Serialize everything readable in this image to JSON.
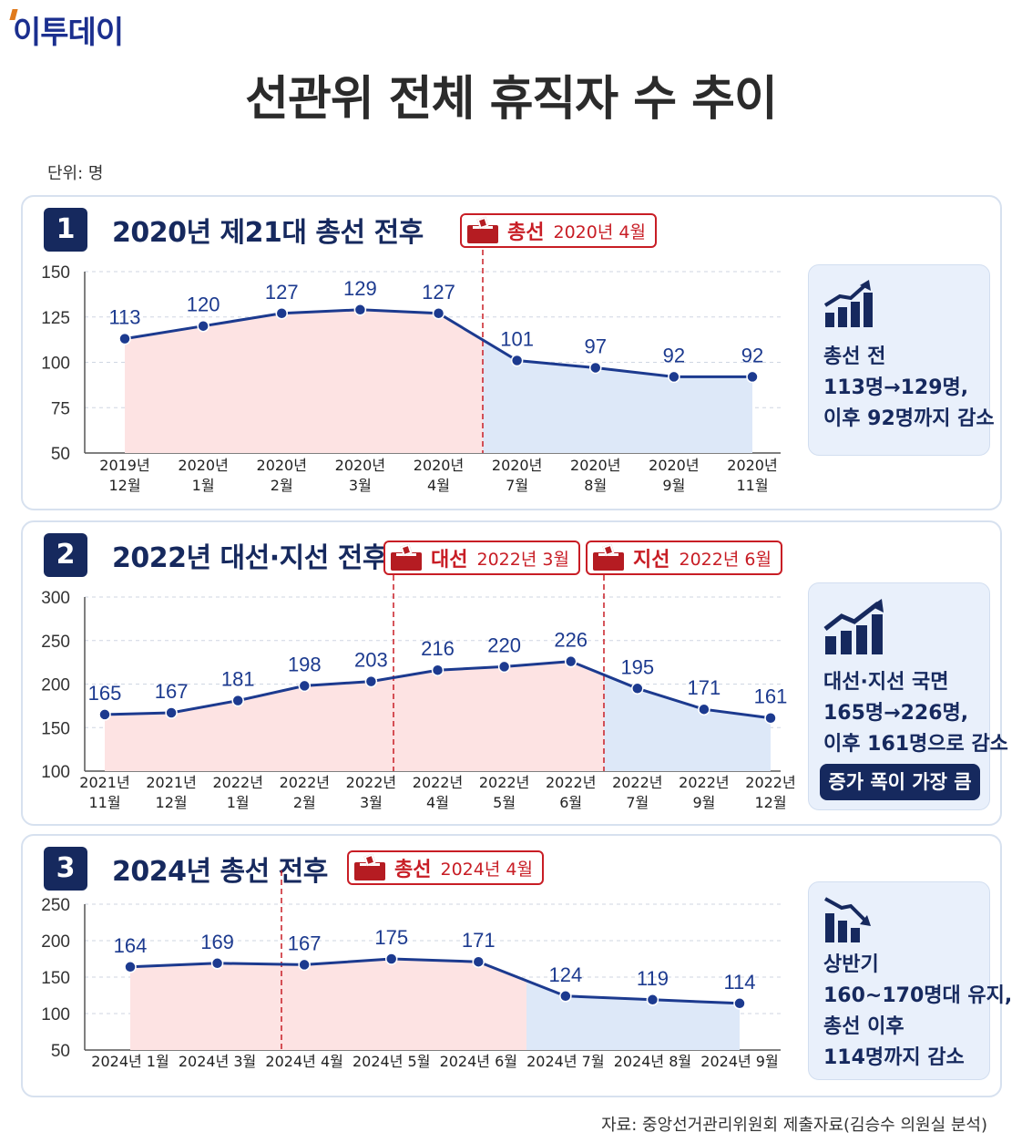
{
  "header": {
    "logo": "이투데이",
    "title": "선관위 전체 휴직자 수 추이",
    "unit": "단위: 명"
  },
  "source": "자료: 중앙선거관리위원회 제출자료(김승수 의원실 분석)",
  "colors": {
    "navy": "#16295e",
    "line": "#1c3a8f",
    "red": "#c81d25",
    "pre_fill": "#fde3e3",
    "post_fill": "#dde8f8"
  },
  "panels": [
    {
      "number": "1",
      "title": "2020년 제21대 총선 전후",
      "events": [
        {
          "name": "총선",
          "date": "2020년 4월"
        }
      ],
      "summary": [
        "총선 전",
        "113명→129명,",
        "이후 92명까지 감소"
      ],
      "icon": "bar-chart-up-icon"
    },
    {
      "number": "2",
      "title": "2022년 대선·지선 전후",
      "events": [
        {
          "name": "대선",
          "date": "2022년 3월"
        },
        {
          "name": "지선",
          "date": "2022년 6월"
        }
      ],
      "summary": [
        "대선·지선 국면",
        "165명→226명,",
        "이후 161명으로 감소"
      ],
      "highlight": "증가 폭이 가장 큼",
      "icon": "bar-chart-up-icon"
    },
    {
      "number": "3",
      "title": "2024년 총선 전후",
      "events": [
        {
          "name": "총선",
          "date": "2024년 4월"
        }
      ],
      "summary": [
        "상반기",
        "160~170명대 유지,",
        "총선 이후",
        "114명까지 감소"
      ],
      "icon": "bar-chart-down-icon"
    }
  ],
  "chart_data": [
    {
      "type": "line",
      "categories": [
        [
          "2019년",
          "12월"
        ],
        [
          "2020년",
          "1월"
        ],
        [
          "2020년",
          "2월"
        ],
        [
          "2020년",
          "3월"
        ],
        [
          "2020년",
          "4월"
        ],
        [
          "2020년",
          "7월"
        ],
        [
          "2020년",
          "8월"
        ],
        [
          "2020년",
          "9월"
        ],
        [
          "2020년",
          "11월"
        ]
      ],
      "values": [
        113,
        120,
        127,
        129,
        127,
        101,
        97,
        92,
        92
      ],
      "ylim": [
        50,
        150
      ],
      "yticks": [
        50,
        75,
        100,
        125,
        150
      ],
      "grid": true,
      "event_lines": [
        {
          "label": "총선",
          "after_index": 4
        }
      ]
    },
    {
      "type": "line",
      "categories": [
        [
          "2021년",
          "11월"
        ],
        [
          "2021년",
          "12월"
        ],
        [
          "2022년",
          "1월"
        ],
        [
          "2022년",
          "2월"
        ],
        [
          "2022년",
          "3월"
        ],
        [
          "2022년",
          "4월"
        ],
        [
          "2022년",
          "5월"
        ],
        [
          "2022년",
          "6월"
        ],
        [
          "2022년",
          "7월"
        ],
        [
          "2022년",
          "9월"
        ],
        [
          "2022년",
          "12월"
        ]
      ],
      "values": [
        165,
        167,
        181,
        198,
        203,
        216,
        220,
        226,
        195,
        171,
        161
      ],
      "ylim": [
        100,
        300
      ],
      "yticks": [
        100,
        150,
        200,
        250,
        300
      ],
      "grid": true,
      "event_lines": [
        {
          "label": "대선",
          "after_index": 4
        },
        {
          "label": "지선",
          "after_index": 7
        }
      ]
    },
    {
      "type": "line",
      "categories": [
        [
          "2024년 1월"
        ],
        [
          "2024년 3월"
        ],
        [
          "2024년 4월"
        ],
        [
          "2024년 5월"
        ],
        [
          "2024년 6월"
        ],
        [
          "2024년 7월"
        ],
        [
          "2024년 8월"
        ],
        [
          "2024년 9월"
        ]
      ],
      "values": [
        164,
        169,
        167,
        175,
        171,
        124,
        119,
        114
      ],
      "ylim": [
        50,
        250
      ],
      "yticks": [
        50,
        100,
        150,
        200,
        250
      ],
      "grid": true,
      "event_lines": [
        {
          "label": "총선",
          "between": [
            1,
            2
          ]
        }
      ]
    }
  ]
}
